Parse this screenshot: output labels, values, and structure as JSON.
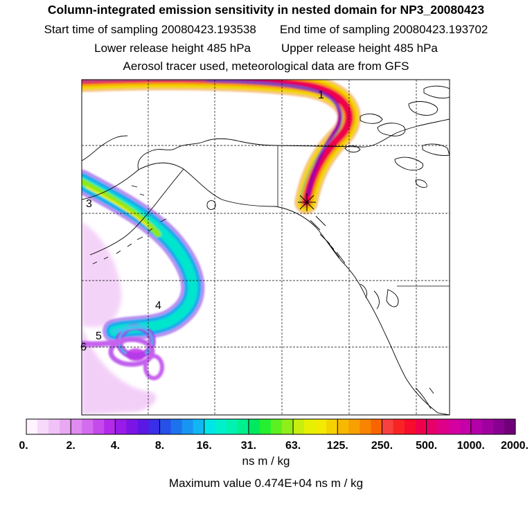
{
  "title": "Column-integrated emission sensitivity in nested domain for NP3_20080423",
  "start_label": "Start time of sampling 20080423.193538",
  "end_label": "End time of sampling 20080423.193702",
  "lower_label": "Lower release height  485 hPa",
  "upper_label": "Upper release height  485 hPa",
  "tracer_label": "Aerosol tracer used, meteorological data are from GFS",
  "unit_label": "ns m / kg",
  "max_label": "Maximum value  0.474E+04 ns m / kg",
  "markers": [
    "1",
    "3",
    "4",
    "5",
    "6"
  ],
  "colorbar": {
    "ticks": [
      "0.",
      "2.",
      "4.",
      "8.",
      "16.",
      "31.",
      "63.",
      "125.",
      "250.",
      "500.",
      "1000.",
      "2000."
    ],
    "colors": [
      "#fff4ff",
      "#f7d9fb",
      "#f0c2f7",
      "#e8a8f3",
      "#df8bf0",
      "#d36cee",
      "#c44aec",
      "#b32aea",
      "#9a1ae8",
      "#7d14e6",
      "#5b18e4",
      "#3a2ee6",
      "#2650ea",
      "#1d72ee",
      "#1894f2",
      "#12b6f2",
      "#00e6e6",
      "#00f0cc",
      "#00f2b0",
      "#00f08f",
      "#00e860",
      "#24f030",
      "#5cf020",
      "#90ee18",
      "#c8ee10",
      "#e6f000",
      "#f2ea00",
      "#f6d200",
      "#f8b800",
      "#f8a000",
      "#f88400",
      "#f86400",
      "#f84040",
      "#f82424",
      "#f80c2c",
      "#f0004c",
      "#e8006a",
      "#de0088",
      "#d400a0",
      "#c600a8",
      "#b400a8",
      "#a000a0",
      "#880090",
      "#700078"
    ]
  }
}
